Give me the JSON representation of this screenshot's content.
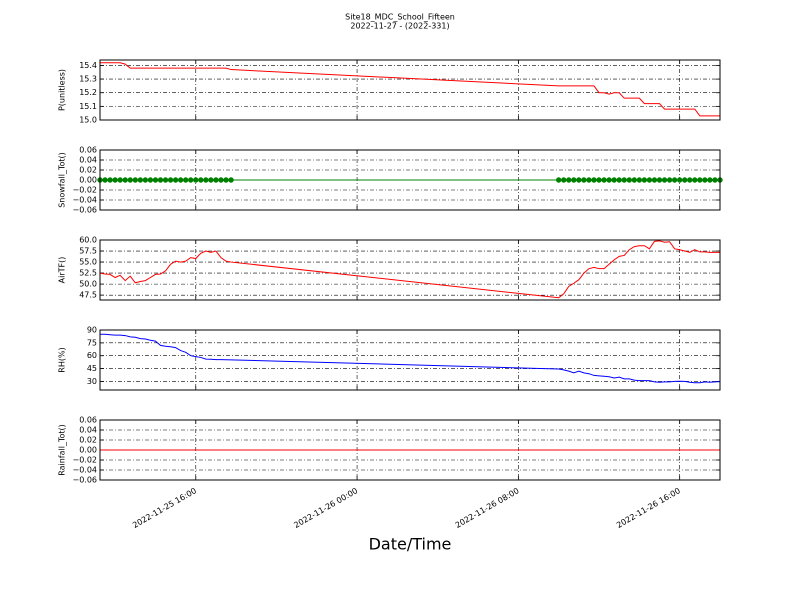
{
  "chart_data": {
    "type": "line",
    "title": "Site18_MDC_School_Fifteen",
    "subtitle": "2022-11-27 - (2022-331)",
    "x_label": "Date/Time",
    "xlim": [
      "2022-11-25 11:15",
      "2022-11-26 18:00"
    ],
    "xticks": [
      "2022-11-25 16:00",
      "2022-11-26 00:00",
      "2022-11-26 08:00",
      "2022-11-26 16:00"
    ],
    "grid": true,
    "x": [
      "2022-11-25 11:15",
      "2022-11-25 11:30",
      "2022-11-25 11:45",
      "2022-11-25 12:00",
      "2022-11-25 12:15",
      "2022-11-25 12:30",
      "2022-11-25 12:45",
      "2022-11-25 13:00",
      "2022-11-25 13:15",
      "2022-11-25 13:30",
      "2022-11-25 13:45",
      "2022-11-25 14:00",
      "2022-11-25 14:15",
      "2022-11-25 14:30",
      "2022-11-25 14:45",
      "2022-11-25 15:00",
      "2022-11-25 15:15",
      "2022-11-25 15:30",
      "2022-11-25 15:45",
      "2022-11-25 16:00",
      "2022-11-25 16:15",
      "2022-11-25 16:30",
      "2022-11-25 16:45",
      "2022-11-25 17:00",
      "2022-11-25 17:15",
      "2022-11-25 17:30",
      "2022-11-25 17:45",
      "2022-11-26 10:00",
      "2022-11-26 10:15",
      "2022-11-26 10:30",
      "2022-11-26 10:45",
      "2022-11-26 11:00",
      "2022-11-26 11:15",
      "2022-11-26 11:30",
      "2022-11-26 11:45",
      "2022-11-26 12:00",
      "2022-11-26 12:15",
      "2022-11-26 12:30",
      "2022-11-26 12:45",
      "2022-11-26 13:00",
      "2022-11-26 13:15",
      "2022-11-26 13:30",
      "2022-11-26 13:45",
      "2022-11-26 14:00",
      "2022-11-26 14:15",
      "2022-11-26 14:30",
      "2022-11-26 14:45",
      "2022-11-26 15:00",
      "2022-11-26 15:15",
      "2022-11-26 15:30",
      "2022-11-26 15:45",
      "2022-11-26 16:00",
      "2022-11-26 16:15",
      "2022-11-26 16:30",
      "2022-11-26 16:45",
      "2022-11-26 17:00",
      "2022-11-26 17:15",
      "2022-11-26 17:30",
      "2022-11-26 17:45",
      "2022-11-26 18:00"
    ],
    "panels": [
      {
        "ylabel": "P(unitless)",
        "ylim": [
          15.0,
          15.44
        ],
        "yticks": [
          {
            "value": 15,
            "label": "15.0"
          },
          15.1,
          15.2,
          15.3,
          15.4
        ],
        "series": [
          {
            "color": "#ff0000",
            "values": [
              15.42,
              15.42,
              15.42,
              15.42,
              15.42,
              15.41,
              15.38,
              15.38,
              15.38,
              15.38,
              15.38,
              15.38,
              15.38,
              15.38,
              15.38,
              15.38,
              15.38,
              15.38,
              15.38,
              15.38,
              15.38,
              15.38,
              15.38,
              15.38,
              15.38,
              15.38,
              15.37,
              15.25,
              15.25,
              15.25,
              15.25,
              15.25,
              15.25,
              15.25,
              15.25,
              15.2,
              15.2,
              15.19,
              15.2,
              15.2,
              15.16,
              15.16,
              15.16,
              15.16,
              15.12,
              15.12,
              15.12,
              15.12,
              15.08,
              15.08,
              15.08,
              15.08,
              15.08,
              15.08,
              15.08,
              15.03,
              15.03,
              15.03,
              15.03,
              15.03
            ]
          }
        ]
      },
      {
        "ylabel": "Snowfall_Tot()",
        "ylim": [
          -0.06,
          0.06
        ],
        "yticks": [
          {
            "value": -0.06,
            "label": "−0.06"
          },
          {
            "value": -0.04,
            "label": "−0.04"
          },
          {
            "value": -0.02,
            "label": "−0.02"
          },
          {
            "value": 0,
            "label": "0.00"
          },
          0.02,
          0.04,
          0.06
        ],
        "series": [
          {
            "color": "#008000",
            "marker": "o",
            "values": [
              0,
              0,
              0,
              0,
              0,
              0,
              0,
              0,
              0,
              0,
              0,
              0,
              0,
              0,
              0,
              0,
              0,
              0,
              0,
              0,
              0,
              0,
              0,
              0,
              0,
              0,
              0,
              0,
              0,
              0,
              0,
              0,
              0,
              0,
              0,
              0,
              0,
              0,
              0,
              0,
              0,
              0,
              0,
              0,
              0,
              0,
              0,
              0,
              0,
              0,
              0,
              0,
              0,
              0,
              0,
              0,
              0,
              0,
              0,
              0
            ]
          }
        ]
      },
      {
        "ylabel": "AirTF()",
        "ylim": [
          46.4,
          60.0
        ],
        "yticks": [
          47.5,
          {
            "value": 50,
            "label": "50.0"
          },
          52.5,
          {
            "value": 55,
            "label": "55.0"
          },
          57.5,
          {
            "value": 60,
            "label": "60.0"
          }
        ],
        "series": [
          {
            "color": "#ff0000",
            "values": [
              52.5,
              52.3,
              52.2,
              51.5,
              52,
              50.8,
              51.8,
              50.3,
              50.6,
              50.8,
              51.5,
              52.2,
              52.3,
              53,
              54.5,
              55.2,
              55,
              55.2,
              56,
              55.8,
              57,
              57.5,
              57.2,
              57.5,
              56,
              55.2,
              55,
              46.9,
              47.8,
              49.5,
              50.2,
              51,
              52.5,
              53.5,
              53.8,
              53.5,
              53.5,
              54.5,
              55.5,
              56.3,
              56.5,
              57.8,
              58.5,
              58.7,
              58.7,
              58,
              59.7,
              59.8,
              59.5,
              59.6,
              58,
              57.8,
              57.5,
              57.2,
              57.8,
              57.3,
              57.3,
              57.2,
              57.2,
              57.2
            ]
          }
        ]
      },
      {
        "ylabel": "RH(%)",
        "ylim": [
          20,
          90
        ],
        "yticks": [
          30,
          45,
          60,
          75,
          90
        ],
        "series": [
          {
            "color": "#0000ff",
            "values": [
              85,
              85,
              84.5,
              84,
              84,
              83.5,
              82,
              81.5,
              80,
              79.5,
              78,
              77,
              72,
              71,
              70.5,
              69.5,
              66,
              64,
              60,
              59,
              58,
              56,
              55.8,
              55.5,
              55.5,
              55.3,
              55.2,
              44.5,
              43.5,
              42,
              40,
              42,
              40,
              39,
              37,
              36.5,
              36,
              35.5,
              34,
              35,
              33,
              33,
              31.5,
              31,
              31,
              31,
              29.5,
              29,
              29.5,
              29.5,
              30,
              30.2,
              30,
              29,
              28.5,
              28.5,
              29.5,
              29,
              29.5,
              29.8
            ]
          }
        ]
      },
      {
        "ylabel": "Rainfall_Tot()",
        "ylim": [
          -0.06,
          0.06
        ],
        "yticks": [
          {
            "value": -0.06,
            "label": "−0.06"
          },
          {
            "value": -0.04,
            "label": "−0.04"
          },
          {
            "value": -0.02,
            "label": "−0.02"
          },
          {
            "value": 0,
            "label": "0.00"
          },
          0.02,
          0.04,
          0.06
        ],
        "series": [
          {
            "color": "#ff0000",
            "values": [
              0,
              0,
              0,
              0,
              0,
              0,
              0,
              0,
              0,
              0,
              0,
              0,
              0,
              0,
              0,
              0,
              0,
              0,
              0,
              0,
              0,
              0,
              0,
              0,
              0,
              0,
              0,
              0,
              0,
              0,
              0,
              0,
              0,
              0,
              0,
              0,
              0,
              0,
              0,
              0,
              0,
              0,
              0,
              0,
              0,
              0,
              0,
              0,
              0,
              0,
              0,
              0,
              0,
              0,
              0,
              0,
              0,
              0,
              0,
              0
            ]
          }
        ]
      }
    ]
  }
}
